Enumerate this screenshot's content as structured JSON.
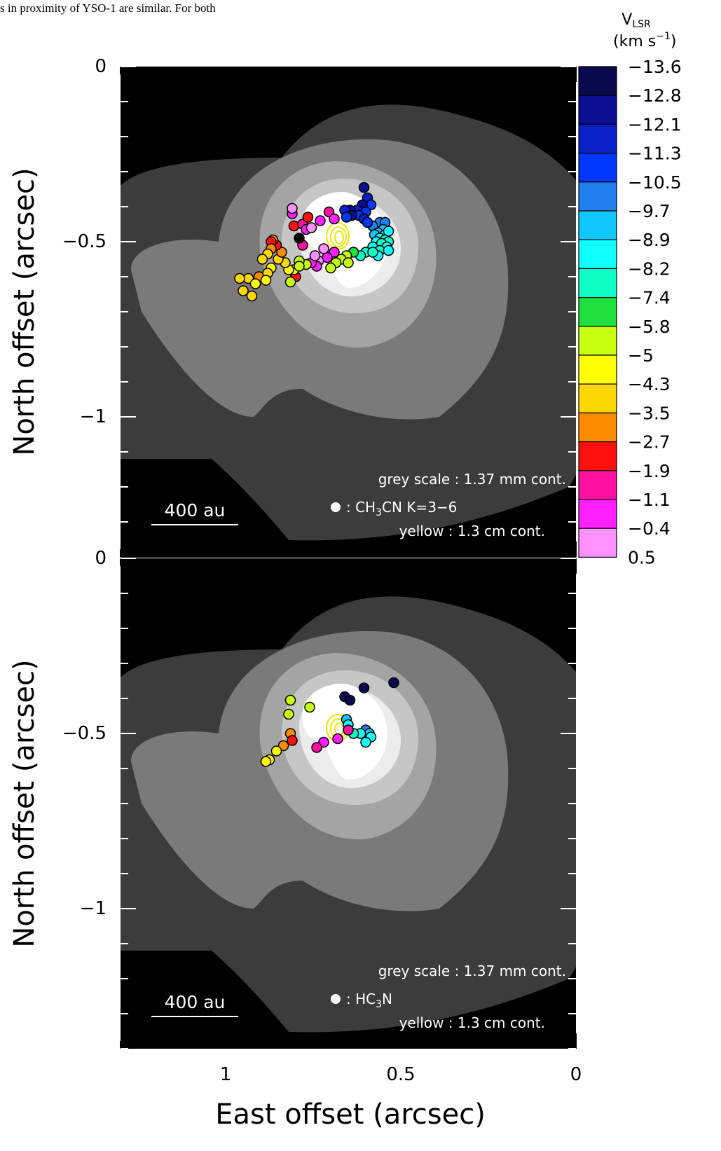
{
  "top_text": "s in proximity of YSO-1 are similar. For both",
  "colorbar": {
    "title_main": "V",
    "title_sub": "LSR",
    "units_open": "(km s",
    "units_exp": "−1",
    "units_close": ")",
    "labels": [
      "−13.6",
      "−12.8",
      "−12.1",
      "−11.3",
      "−10.5",
      "−9.7",
      "−8.9",
      "−8.2",
      "−7.4",
      "−5.8",
      "−5",
      "−4.3",
      "−3.5",
      "−2.7",
      "−1.9",
      "−1.1",
      "−0.4",
      "0.5"
    ],
    "colors": [
      "#0a0a50",
      "#0a1090",
      "#0a20c8",
      "#0038ff",
      "#2080f0",
      "#10c8ff",
      "#10ffff",
      "#10ffc8",
      "#20e040",
      "#c8ff10",
      "#ffff00",
      "#ffd700",
      "#ff8c00",
      "#ff1010",
      "#ff10a0",
      "#ff20ff",
      "#ff90ff"
    ]
  },
  "chart_data": [
    {
      "type": "scatter",
      "panel": "top",
      "xlabel": "East offset (arcsec)",
      "ylabel": "North offset (arcsec)",
      "xlim": [
        1.3,
        0
      ],
      "ylim": [
        -1.4,
        0
      ],
      "x_ticks": [
        "1",
        "0.5",
        "0"
      ],
      "y_ticks": [
        "0",
        "−0.5",
        "−1"
      ],
      "legend": {
        "grey": "grey scale : 1.37 mm cont.",
        "marker_pre": ": CH",
        "marker_sub": "3",
        "marker_post": "CN K=3−6",
        "yellow": "yellow : 1.3 cm cont."
      },
      "scale_bar": "400 au",
      "series_name": "CH3CN K=3−6",
      "points": [
        [
          0.605,
          -0.345,
          1
        ],
        [
          0.595,
          -0.375,
          2
        ],
        [
          0.585,
          -0.395,
          3
        ],
        [
          0.61,
          -0.395,
          1
        ],
        [
          0.625,
          -0.41,
          2
        ],
        [
          0.645,
          -0.41,
          1
        ],
        [
          0.66,
          -0.41,
          2
        ],
        [
          0.6,
          -0.415,
          3
        ],
        [
          0.62,
          -0.425,
          3
        ],
        [
          0.64,
          -0.425,
          1
        ],
        [
          0.605,
          -0.435,
          2
        ],
        [
          0.655,
          -0.43,
          3
        ],
        [
          0.56,
          -0.445,
          4
        ],
        [
          0.545,
          -0.445,
          4
        ],
        [
          0.58,
          -0.455,
          4
        ],
        [
          0.595,
          -0.445,
          3
        ],
        [
          0.55,
          -0.465,
          5
        ],
        [
          0.565,
          -0.475,
          5
        ],
        [
          0.545,
          -0.48,
          6
        ],
        [
          0.535,
          -0.47,
          6
        ],
        [
          0.575,
          -0.48,
          5
        ],
        [
          0.56,
          -0.49,
          6
        ],
        [
          0.545,
          -0.495,
          7
        ],
        [
          0.57,
          -0.5,
          6
        ],
        [
          0.535,
          -0.5,
          7
        ],
        [
          0.555,
          -0.505,
          7
        ],
        [
          0.54,
          -0.515,
          6
        ],
        [
          0.58,
          -0.515,
          6
        ],
        [
          0.56,
          -0.525,
          7
        ],
        [
          0.535,
          -0.525,
          6
        ],
        [
          0.6,
          -0.53,
          7
        ],
        [
          0.615,
          -0.54,
          7
        ],
        [
          0.565,
          -0.54,
          6
        ],
        [
          0.58,
          -0.53,
          7
        ],
        [
          0.635,
          -0.53,
          8
        ],
        [
          0.655,
          -0.54,
          9
        ],
        [
          0.67,
          -0.55,
          9
        ],
        [
          0.65,
          -0.56,
          9
        ],
        [
          0.685,
          -0.56,
          9
        ],
        [
          0.7,
          -0.575,
          9
        ],
        [
          0.69,
          -0.53,
          15
        ],
        [
          0.71,
          -0.545,
          15
        ],
        [
          0.735,
          -0.555,
          16
        ],
        [
          0.74,
          -0.57,
          15
        ],
        [
          0.755,
          -0.56,
          15
        ],
        [
          0.745,
          -0.54,
          16
        ],
        [
          0.72,
          -0.52,
          16
        ],
        [
          0.77,
          -0.565,
          9
        ],
        [
          0.79,
          -0.555,
          9
        ],
        [
          0.78,
          -0.51,
          14
        ],
        [
          0.79,
          -0.49,
          17
        ],
        [
          0.805,
          -0.455,
          13
        ],
        [
          0.78,
          -0.45,
          14
        ],
        [
          0.77,
          -0.465,
          15
        ],
        [
          0.755,
          -0.46,
          16
        ],
        [
          0.73,
          -0.44,
          15
        ],
        [
          0.705,
          -0.415,
          14
        ],
        [
          0.69,
          -0.435,
          15
        ],
        [
          0.765,
          -0.43,
          13
        ],
        [
          0.81,
          -0.42,
          15
        ],
        [
          0.81,
          -0.405,
          16
        ],
        [
          0.8,
          -0.6,
          13
        ],
        [
          0.815,
          -0.615,
          9
        ],
        [
          0.805,
          -0.58,
          10
        ],
        [
          0.79,
          -0.57,
          9
        ],
        [
          0.82,
          -0.58,
          10
        ],
        [
          0.83,
          -0.56,
          11
        ],
        [
          0.85,
          -0.55,
          11
        ],
        [
          0.84,
          -0.53,
          12
        ],
        [
          0.855,
          -0.51,
          13
        ],
        [
          0.865,
          -0.495,
          12
        ],
        [
          0.87,
          -0.5,
          13
        ],
        [
          0.87,
          -0.52,
          12
        ],
        [
          0.88,
          -0.535,
          11
        ],
        [
          0.895,
          -0.55,
          11
        ],
        [
          0.87,
          -0.575,
          10
        ],
        [
          0.88,
          -0.59,
          11
        ],
        [
          0.905,
          -0.6,
          12
        ],
        [
          0.935,
          -0.605,
          11
        ],
        [
          0.915,
          -0.62,
          10
        ],
        [
          0.885,
          -0.61,
          10
        ],
        [
          0.96,
          -0.605,
          11
        ],
        [
          0.95,
          -0.64,
          11
        ],
        [
          0.925,
          -0.655,
          11
        ]
      ]
    },
    {
      "type": "scatter",
      "panel": "bottom",
      "xlabel": "East offset (arcsec)",
      "ylabel": "North offset (arcsec)",
      "xlim": [
        1.3,
        0
      ],
      "ylim": [
        -1.4,
        0
      ],
      "x_ticks": [
        "1",
        "0.5",
        "0"
      ],
      "y_ticks": [
        "−0.5",
        "−1"
      ],
      "legend": {
        "grey": "grey scale : 1.37 mm cont.",
        "marker_pre": ": HC",
        "marker_sub": "3",
        "marker_post": "N",
        "yellow": "yellow : 1.3 cm cont."
      },
      "scale_bar": "400 au",
      "series_name": "HC3N",
      "points": [
        [
          0.52,
          -0.355,
          0
        ],
        [
          0.605,
          -0.37,
          0
        ],
        [
          0.66,
          -0.395,
          0
        ],
        [
          0.645,
          -0.405,
          0
        ],
        [
          0.655,
          -0.46,
          5
        ],
        [
          0.65,
          -0.475,
          6
        ],
        [
          0.6,
          -0.49,
          4
        ],
        [
          0.59,
          -0.5,
          5
        ],
        [
          0.615,
          -0.5,
          6
        ],
        [
          0.585,
          -0.51,
          6
        ],
        [
          0.6,
          -0.525,
          6
        ],
        [
          0.635,
          -0.5,
          7
        ],
        [
          0.68,
          -0.515,
          15
        ],
        [
          0.72,
          -0.525,
          15
        ],
        [
          0.74,
          -0.54,
          14
        ],
        [
          0.65,
          -0.49,
          14
        ],
        [
          0.76,
          -0.425,
          9
        ],
        [
          0.815,
          -0.405,
          9
        ],
        [
          0.82,
          -0.445,
          9
        ],
        [
          0.815,
          -0.5,
          12
        ],
        [
          0.81,
          -0.52,
          13
        ],
        [
          0.835,
          -0.535,
          12
        ],
        [
          0.855,
          -0.55,
          10
        ],
        [
          0.875,
          -0.575,
          10
        ],
        [
          0.885,
          -0.58,
          10
        ]
      ]
    }
  ]
}
